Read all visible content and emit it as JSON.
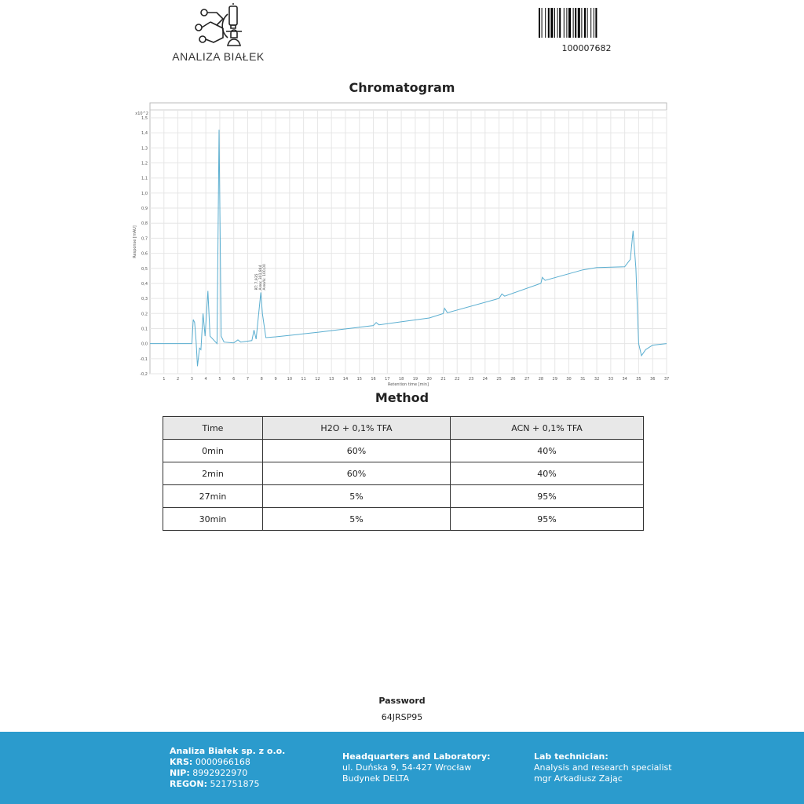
{
  "header": {
    "logo_text": "ANALIZA BIAŁEK",
    "barcode_number": "100007682"
  },
  "chromatogram": {
    "title": "Chromatogram"
  },
  "chart_data": {
    "type": "line",
    "xlabel": "Retention time [min]",
    "ylabel": "Response [mAU]",
    "y_multiplier": "x10^2",
    "xlim": [
      0,
      37
    ],
    "ylim": [
      -0.2,
      1.5
    ],
    "x_ticks": [
      1,
      2,
      3,
      4,
      5,
      6,
      7,
      8,
      9,
      10,
      11,
      12,
      13,
      14,
      15,
      16,
      17,
      18,
      19,
      20,
      21,
      22,
      23,
      24,
      25,
      26,
      27,
      28,
      29,
      30,
      31,
      32,
      33,
      34,
      35,
      36,
      37
    ],
    "y_ticks": [
      "-0,2",
      "-0,1",
      "0,0",
      "0,1",
      "0,2",
      "0,3",
      "0,4",
      "0,5",
      "0,6",
      "0,7",
      "0,8",
      "0,9",
      "1,0",
      "1,1",
      "1,2",
      "1,3",
      "1,4",
      "1,5"
    ],
    "grid": true,
    "line_color": "#5aaed0",
    "series": [
      {
        "x": [
          0,
          3.0,
          3.1,
          3.2,
          3.3,
          3.4,
          3.55,
          3.65,
          3.8,
          3.95,
          4.15,
          4.3,
          4.8,
          4.95,
          5.1,
          5.3,
          6.0,
          6.3,
          6.5,
          7.3,
          7.45,
          7.6,
          7.94,
          8.05,
          8.3,
          9,
          12,
          16,
          16.2,
          16.4,
          20,
          21,
          21.1,
          21.3,
          25,
          25.2,
          25.4,
          28,
          28.1,
          28.3,
          31,
          32,
          34,
          34.4,
          34.6,
          34.8,
          35,
          35.2,
          35.5,
          36,
          37
        ],
        "y": [
          0,
          0,
          0.16,
          0.14,
          0.02,
          -0.15,
          -0.03,
          -0.04,
          0.2,
          0.05,
          0.35,
          0.05,
          0.0,
          1.42,
          0.05,
          0.01,
          0.005,
          0.025,
          0.01,
          0.02,
          0.09,
          0.03,
          0.34,
          0.2,
          0.04,
          0.045,
          0.075,
          0.12,
          0.14,
          0.125,
          0.17,
          0.2,
          0.235,
          0.205,
          0.3,
          0.33,
          0.315,
          0.4,
          0.44,
          0.42,
          0.49,
          0.505,
          0.51,
          0.56,
          0.75,
          0.5,
          0.0,
          -0.08,
          -0.04,
          -0.01,
          0.0
        ]
      }
    ],
    "annotations": [
      {
        "x": 7.935,
        "y": 0.34,
        "lines": [
          "RT: 7,935",
          "Area: 301,844",
          "Area%: 100,00"
        ]
      }
    ]
  },
  "method": {
    "title": "Method",
    "headers": [
      "Time",
      "H2O + 0,1% TFA",
      "ACN + 0,1% TFA"
    ],
    "rows": [
      [
        "0min",
        "60%",
        "40%"
      ],
      [
        "2min",
        "60%",
        "40%"
      ],
      [
        "27min",
        "5%",
        "95%"
      ],
      [
        "30min",
        "5%",
        "95%"
      ]
    ]
  },
  "password": {
    "label": "Password",
    "value": "64JRSP95"
  },
  "footer": {
    "company": "Analiza Białek sp. z o.o.",
    "krs_label": "KRS:",
    "krs": "0000966168",
    "nip_label": "NIP:",
    "nip": "8992922970",
    "regon_label": "REGON:",
    "regon": "521751875",
    "hq_label": "Headquarters and Laboratory:",
    "hq_line1": "ul. Duńska 9, 54-427 Wrocław",
    "hq_line2": "Budynek DELTA",
    "tech_label": "Lab technician:",
    "tech_line1": "Analysis and research specialist",
    "tech_line2": "mgr Arkadiusz Zając"
  }
}
